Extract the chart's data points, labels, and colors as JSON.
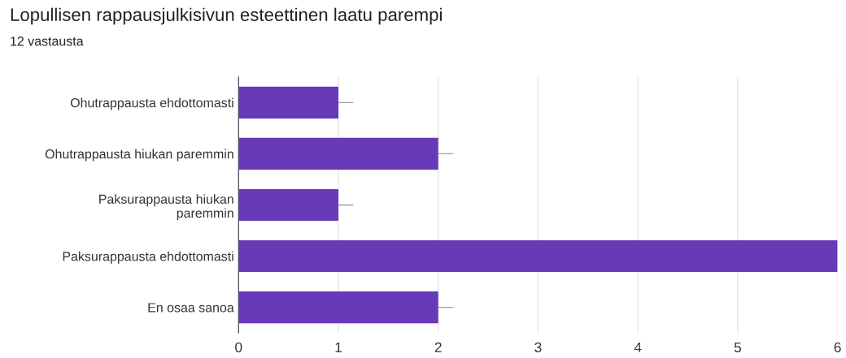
{
  "chart_data": {
    "type": "bar",
    "orientation": "horizontal",
    "title": "Lopullisen rappausjulkisivun esteettinen laatu parempi",
    "subtitle": "12 vastausta",
    "categories": [
      "Ohutrappausta ehdottomasti",
      "Ohutrappausta hiukan paremmin",
      "Paksurappausta hiukan\nparemmin",
      "Paksurappausta ehdottomasti",
      "En osaa sanoa"
    ],
    "values": [
      1,
      2,
      1,
      6,
      2
    ],
    "color": "#673ab7",
    "errors": [
      [
        1,
        1.15
      ],
      [
        2,
        2.15
      ],
      [
        1,
        1.15
      ],
      null,
      [
        2,
        2.15
      ]
    ],
    "xlim": [
      0,
      6
    ],
    "xticks": [
      0,
      1,
      2,
      3,
      4,
      5,
      6
    ],
    "grid": "x",
    "legend": false
  }
}
